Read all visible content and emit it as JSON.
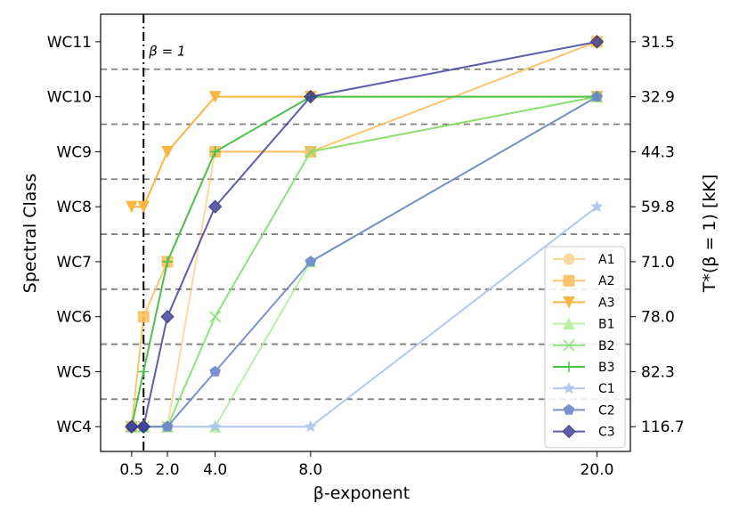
{
  "chart_data": {
    "type": "line",
    "xlabel": "β-exponent",
    "ylabel_left": "Spectral Class",
    "ylabel_right": "T*(β = 1) [kK]",
    "x_ticks": [
      "0.5",
      "2.0",
      "4.0",
      "8.0",
      "20.0"
    ],
    "x_tick_values": [
      0.5,
      2.0,
      4.0,
      8.0,
      20.0
    ],
    "y_ticks_left": [
      "WC4",
      "WC5",
      "WC6",
      "WC7",
      "WC8",
      "WC9",
      "WC10",
      "WC11"
    ],
    "y_ticks_right": [
      "116.7",
      "82.3",
      "78.0",
      "71.0",
      "59.8",
      "44.3",
      "32.9",
      "31.5"
    ],
    "xlim": [
      -0.8,
      21.4
    ],
    "ylim": [
      3.55,
      11.5
    ],
    "grid": "dashed horizontal lines between spectral classes",
    "annotation": {
      "text": "β = 1",
      "x": 1.0
    },
    "legend_position": "lower right",
    "series": [
      {
        "name": "A1",
        "color": "#fcc77a",
        "marker": "circle",
        "alpha": 0.7,
        "x": [
          0.5,
          1.0,
          2.0,
          4.0,
          8.0,
          20.0
        ],
        "y": [
          4,
          4,
          4,
          9,
          9,
          10
        ]
      },
      {
        "name": "A2",
        "color": "#fcbf60",
        "marker": "square",
        "alpha": 0.9,
        "x": [
          0.5,
          1.0,
          2.0,
          4.0,
          8.0,
          20.0
        ],
        "y": [
          4,
          6,
          7,
          9,
          9,
          11
        ]
      },
      {
        "name": "A3",
        "color": "#fbb545",
        "marker": "triangle-down",
        "alpha": 1.0,
        "x": [
          0.5,
          1.0,
          2.0,
          4.0,
          8.0,
          20.0
        ],
        "y": [
          8,
          8,
          9,
          10,
          10,
          10
        ]
      },
      {
        "name": "B1",
        "color": "#a7ed91",
        "marker": "triangle-up",
        "alpha": 0.8,
        "x": [
          0.5,
          1.0,
          2.0,
          4.0,
          8.0,
          20.0
        ],
        "y": [
          4,
          4,
          4,
          4,
          7,
          10
        ]
      },
      {
        "name": "B2",
        "color": "#7ee06e",
        "marker": "x",
        "alpha": 0.9,
        "x": [
          0.5,
          1.0,
          2.0,
          4.0,
          8.0,
          20.0
        ],
        "y": [
          4,
          4,
          4,
          6,
          9,
          10
        ]
      },
      {
        "name": "B3",
        "color": "#4cc24c",
        "marker": "plus",
        "alpha": 1.0,
        "x": [
          0.5,
          1.0,
          2.0,
          4.0,
          8.0,
          20.0
        ],
        "y": [
          4,
          5,
          7,
          9,
          10,
          10
        ]
      },
      {
        "name": "C1",
        "color": "#a9c3ee",
        "marker": "star",
        "alpha": 0.9,
        "x": [
          0.5,
          1.0,
          2.0,
          4.0,
          8.0,
          20.0
        ],
        "y": [
          4,
          4,
          4,
          4,
          4,
          8
        ]
      },
      {
        "name": "C2",
        "color": "#6d86c8",
        "marker": "pentagon",
        "alpha": 0.9,
        "x": [
          0.5,
          1.0,
          2.0,
          4.0,
          8.0,
          20.0
        ],
        "y": [
          4,
          4,
          4,
          5,
          7,
          10
        ]
      },
      {
        "name": "C3",
        "color": "#36359a",
        "marker": "diamond",
        "alpha": 0.8,
        "x": [
          0.5,
          1.0,
          2.0,
          4.0,
          8.0,
          20.0
        ],
        "y": [
          4,
          4,
          6,
          8,
          10,
          11
        ]
      }
    ]
  }
}
